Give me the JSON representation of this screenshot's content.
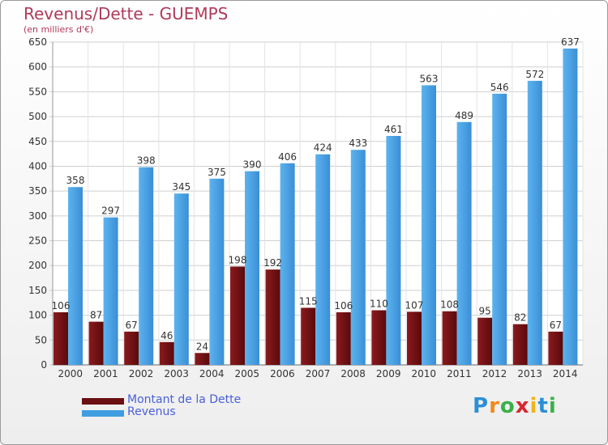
{
  "header": {
    "title": "Revenus/Dette - GUEMPS",
    "subtitle": "(en milliers d'€)"
  },
  "colors": {
    "debt": "#6b0f12",
    "revenue": "#3f9de0",
    "title": "#b03a5b",
    "legend_text": "#4a5fd8"
  },
  "legend": {
    "items": [
      {
        "label": "Montant de la Dette",
        "color": "#6b0f12"
      },
      {
        "label": "Revenus",
        "color": "#3f9de0"
      }
    ]
  },
  "logo": {
    "text": "Proxiti",
    "letter_colors": [
      "#2c8fd6",
      "#f08a1c",
      "#3ab04a",
      "#d8262e",
      "#f0b41c",
      "#2c8fd6",
      "#3ab04a"
    ]
  },
  "chart_data": {
    "type": "bar",
    "title": "Revenus/Dette - GUEMPS",
    "ylabel": "(en milliers d'€)",
    "categories": [
      "2000",
      "2001",
      "2002",
      "2003",
      "2004",
      "2005",
      "2006",
      "2007",
      "2008",
      "2009",
      "2010",
      "2011",
      "2012",
      "2013",
      "2014"
    ],
    "series": [
      {
        "name": "Montant de la Dette",
        "values": [
          106,
          87,
          67,
          46,
          24,
          198,
          192,
          115,
          106,
          110,
          107,
          108,
          95,
          82,
          67
        ]
      },
      {
        "name": "Revenus",
        "values": [
          358,
          297,
          398,
          345,
          375,
          390,
          406,
          424,
          433,
          461,
          563,
          489,
          546,
          572,
          637
        ]
      }
    ],
    "ylim": [
      0,
      650
    ],
    "yticks": [
      0,
      50,
      100,
      150,
      200,
      250,
      300,
      350,
      400,
      450,
      500,
      550,
      600,
      650
    ],
    "grid": true,
    "legend_position": "bottom-left"
  }
}
